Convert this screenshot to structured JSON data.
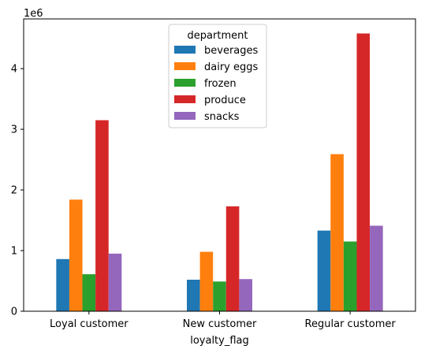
{
  "chart_data": {
    "type": "bar",
    "title": "",
    "xlabel": "loyalty_flag",
    "ylabel": "",
    "offset_text": "1e6",
    "ylim": [
      0,
      4.82
    ],
    "y_ticks": [
      0,
      1,
      2,
      3,
      4
    ],
    "y_tick_labels": [
      "0",
      "1",
      "2",
      "3",
      "4"
    ],
    "grid": false,
    "categories": [
      "Loyal customer",
      "New customer",
      "Regular customer"
    ],
    "legend": {
      "title": "department",
      "placement": "upper center"
    },
    "series": [
      {
        "name": "beverages",
        "color": "#1f77b4",
        "values": [
          0.86,
          0.52,
          1.33
        ]
      },
      {
        "name": "dairy eggs",
        "color": "#ff7f0e",
        "values": [
          1.84,
          0.98,
          2.59
        ]
      },
      {
        "name": "frozen",
        "color": "#2ca02c",
        "values": [
          0.61,
          0.49,
          1.15
        ]
      },
      {
        "name": "produce",
        "color": "#d62728",
        "values": [
          3.15,
          1.73,
          4.58
        ]
      },
      {
        "name": "snacks",
        "color": "#9467bd",
        "values": [
          0.95,
          0.53,
          1.41
        ]
      }
    ]
  }
}
